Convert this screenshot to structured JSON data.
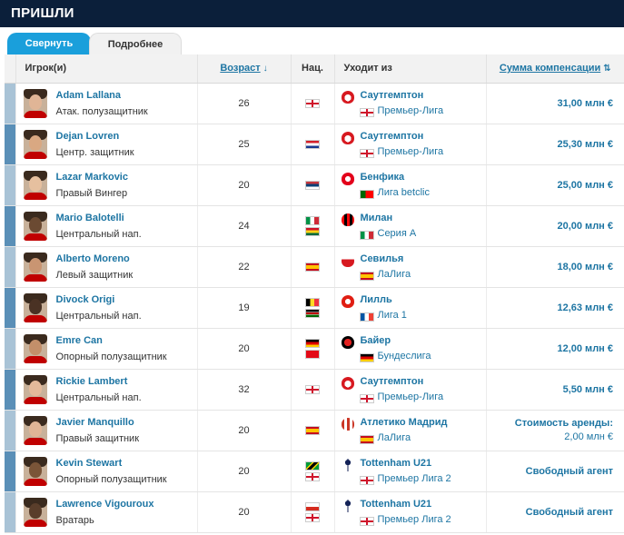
{
  "header": {
    "title": "ПРИШЛИ"
  },
  "tabs": [
    {
      "label": "Свернуть",
      "active": true
    },
    {
      "label": "Подробнее",
      "active": false
    }
  ],
  "columns": {
    "player": "Игрок(и)",
    "age": "Возраст",
    "nat": "Нац.",
    "from": "Уходит из",
    "fee": "Сумма компенсации"
  },
  "colors": {
    "header_bg": "#0b1f3a",
    "accent": "#1a9fdb",
    "link": "#1d75a3"
  },
  "rows": [
    {
      "name": "Adam Lallana",
      "position": "Атак. полузащитник",
      "age": "26",
      "nat": [
        "england"
      ],
      "club": "Саутгемптон",
      "club_crest": "southampton-crest",
      "league_flag": "england",
      "league": "Премьер-Лига",
      "fee": "31,00 млн €",
      "fee_sub": ""
    },
    {
      "name": "Dejan Lovren",
      "position": "Центр. защитник",
      "age": "25",
      "nat": [
        "croatia"
      ],
      "club": "Саутгемптон",
      "club_crest": "southampton-crest",
      "league_flag": "england",
      "league": "Премьер-Лига",
      "fee": "25,30 млн €",
      "fee_sub": ""
    },
    {
      "name": "Lazar Markovic",
      "position": "Правый Вингер",
      "age": "20",
      "nat": [
        "serbia"
      ],
      "club": "Бенфика",
      "club_crest": "benfica-crest",
      "league_flag": "portugal",
      "league": "Лига betclic",
      "fee": "25,00 млн €",
      "fee_sub": ""
    },
    {
      "name": "Mario Balotelli",
      "position": "Центральный нап.",
      "age": "24",
      "nat": [
        "italy",
        "ghana"
      ],
      "club": "Милан",
      "club_crest": "milan-crest",
      "league_flag": "italy",
      "league": "Серия А",
      "fee": "20,00 млн €",
      "fee_sub": ""
    },
    {
      "name": "Alberto Moreno",
      "position": "Левый защитник",
      "age": "22",
      "nat": [
        "spain"
      ],
      "club": "Севилья",
      "club_crest": "sevilla-crest",
      "league_flag": "spain",
      "league": "ЛаЛига",
      "fee": "18,00 млн €",
      "fee_sub": ""
    },
    {
      "name": "Divock Origi",
      "position": "Центральный нап.",
      "age": "19",
      "nat": [
        "belgium",
        "kenya"
      ],
      "club": "Лилль",
      "club_crest": "lille-crest",
      "league_flag": "france",
      "league": "Лига 1",
      "fee": "12,63 млн €",
      "fee_sub": ""
    },
    {
      "name": "Emre Can",
      "position": "Опорный полузащитник",
      "age": "20",
      "nat": [
        "germany",
        "turkey"
      ],
      "club": "Байер",
      "club_crest": "leverkusen-crest",
      "league_flag": "germany",
      "league": "Бундеслига",
      "fee": "12,00 млн €",
      "fee_sub": ""
    },
    {
      "name": "Rickie Lambert",
      "position": "Центральный нап.",
      "age": "32",
      "nat": [
        "england"
      ],
      "club": "Саутгемптон",
      "club_crest": "southampton-crest",
      "league_flag": "england",
      "league": "Премьер-Лига",
      "fee": "5,50 млн €",
      "fee_sub": ""
    },
    {
      "name": "Javier Manquillo",
      "position": "Правый защитник",
      "age": "20",
      "nat": [
        "spain"
      ],
      "club": "Атлетико Мадрид",
      "club_crest": "atletico-crest",
      "league_flag": "spain",
      "league": "ЛаЛига",
      "fee": "Стоимость аренды:",
      "fee_sub": "2,00 млн €"
    },
    {
      "name": "Kevin Stewart",
      "position": "Опорный полузащитник",
      "age": "20",
      "nat": [
        "jamaica",
        "england"
      ],
      "club": "Tottenham U21",
      "club_crest": "tottenham-crest",
      "league_flag": "england",
      "league": "Премьер Лига 2",
      "fee": "Свободный агент",
      "fee_sub": ""
    },
    {
      "name": "Lawrence Vigouroux",
      "position": "Вратарь",
      "age": "20",
      "nat": [
        "chile",
        "england"
      ],
      "club": "Tottenham U21",
      "club_crest": "tottenham-crest",
      "league_flag": "england",
      "league": "Премьер Лига 2",
      "fee": "Свободный агент",
      "fee_sub": ""
    }
  ]
}
